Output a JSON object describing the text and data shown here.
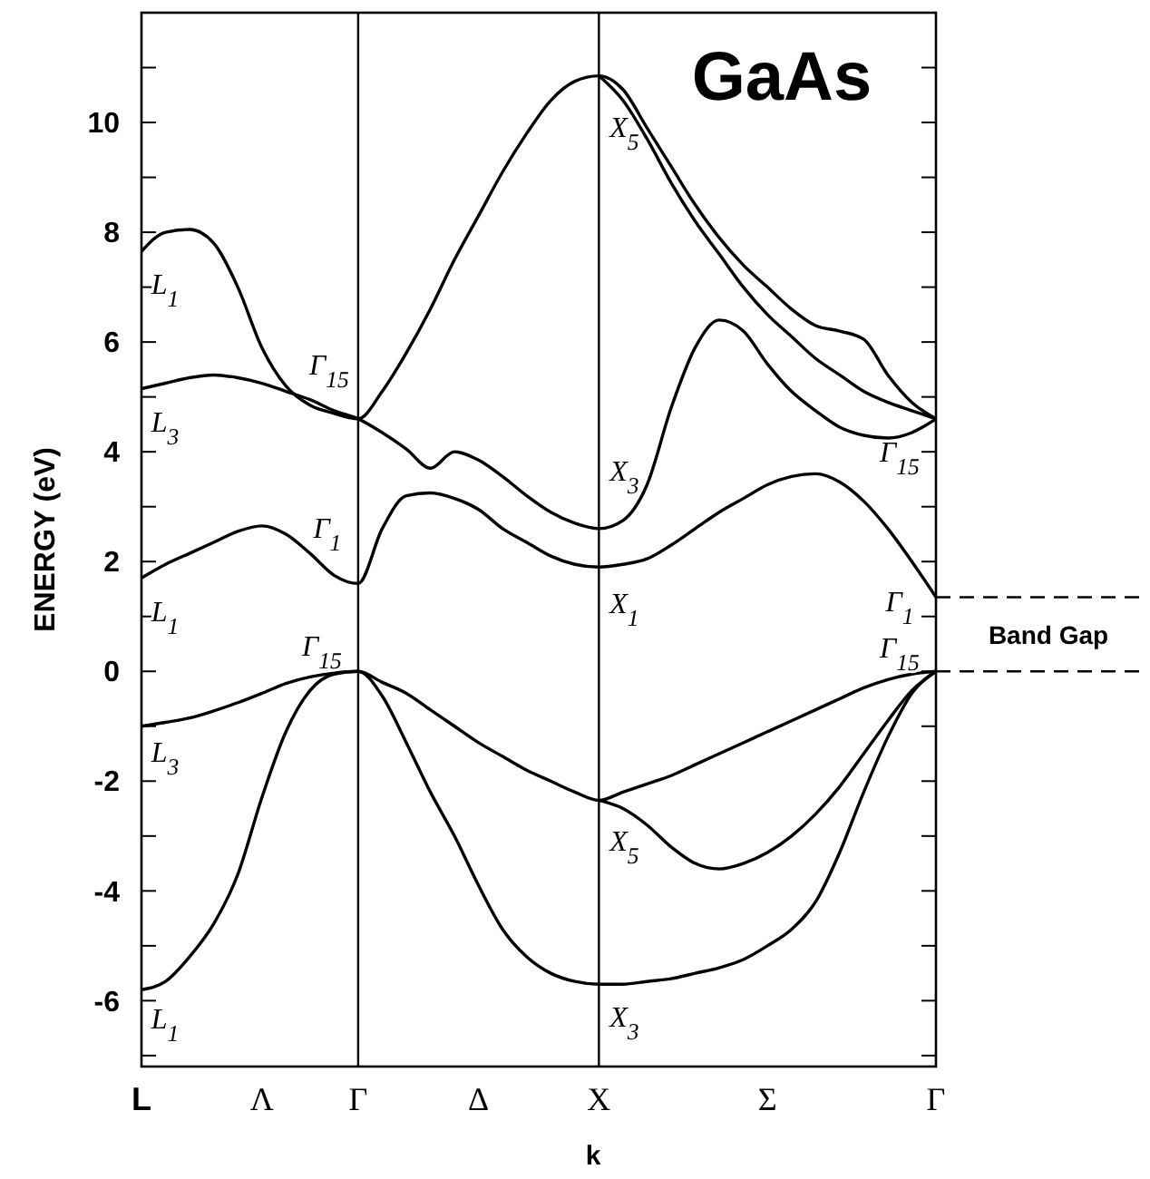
{
  "chart_data": {
    "type": "line",
    "title": "GaAs",
    "xlabel": "k",
    "ylabel": "ENERGY (eV)",
    "categories": [
      "L",
      null,
      null,
      null,
      null,
      "Λ",
      null,
      null,
      null,
      "Γ",
      null,
      null,
      null,
      null,
      "Δ",
      null,
      null,
      null,
      null,
      "X",
      null,
      null,
      null,
      null,
      null,
      null,
      "Σ",
      null,
      null,
      null,
      null,
      null,
      null,
      "Γ"
    ],
    "ylim": [
      -7.2,
      12
    ],
    "yticks": [
      {
        "value": -7,
        "label": null
      },
      -6,
      {
        "value": -5,
        "label": null
      },
      -4,
      {
        "value": -3,
        "label": null
      },
      -2,
      {
        "value": -1,
        "label": null
      },
      0,
      {
        "value": 1,
        "label": null
      },
      2,
      {
        "value": 3,
        "label": null
      },
      4,
      {
        "value": 5,
        "label": null
      },
      6,
      {
        "value": 7,
        "label": null
      },
      8,
      {
        "value": 9,
        "label": null
      },
      10,
      {
        "value": 11,
        "label": null
      }
    ],
    "ref_lines": [
      {
        "axis": "x",
        "value": "Γ"
      },
      {
        "axis": "x",
        "value": "X"
      }
    ],
    "annotations": [
      "L$_{1}$",
      "L$_{3}$",
      "Γ$_{15}$",
      "Γ$_{1}$",
      "L$_{1}$",
      "Γ$_{15}$",
      "L$_{3}$",
      "L$_{1}$",
      "X$_{5}$",
      "X$_{3}$",
      "X$_{1}$",
      "X$_{5}$",
      "X$_{3}$",
      "Γ$_{15}$",
      "Γ$_{1}$",
      "Γ$_{15}$",
      "Band Gap"
    ],
    "series": [
      {
        "color": "#000000",
        "values": [
          -1,
          -0.93,
          -0.85,
          -0.72,
          -0.57,
          -0.4,
          -0.22,
          -0.1,
          -0.03,
          0,
          -0.2,
          -0.4,
          -0.7,
          -1.0,
          -1.3,
          -1.55,
          -1.8,
          -2.0,
          -2.2,
          -2.35,
          -2.2,
          -2.05,
          -1.9,
          -1.7,
          -1.5,
          -1.3,
          -1.1,
          -0.9,
          -0.7,
          -0.5,
          -0.3,
          -0.15,
          -0.05,
          0
        ]
      },
      {
        "color": "#000000",
        "values": [
          -5.8,
          -5.65,
          -5.2,
          -4.6,
          -3.7,
          -2.3,
          -1.1,
          -0.35,
          -0.05,
          0,
          -0.45,
          -1.3,
          -2.2,
          -3.0,
          -3.9,
          -4.7,
          -5.2,
          -5.5,
          -5.65,
          -5.7,
          -5.7,
          -5.65,
          -5.6,
          -5.5,
          -5.4,
          -5.25,
          -5.0,
          -4.7,
          -4.2,
          -3.3,
          -2.2,
          -1.2,
          -0.4,
          0
        ]
      },
      {
        "color": "#000000",
        "values": [
          null,
          null,
          null,
          null,
          null,
          null,
          null,
          null,
          null,
          null,
          null,
          null,
          null,
          null,
          null,
          null,
          null,
          null,
          null,
          -2.35,
          -2.5,
          -2.8,
          -3.2,
          -3.5,
          -3.6,
          -3.5,
          -3.3,
          -3.0,
          -2.6,
          -2.1,
          -1.5,
          -0.9,
          -0.35,
          0
        ]
      },
      {
        "color": "#000000",
        "values": [
          1.7,
          1.95,
          2.15,
          2.35,
          2.55,
          2.65,
          2.5,
          2.15,
          1.75,
          1.6,
          2.6,
          3.2,
          3.25,
          3.15,
          2.95,
          2.6,
          2.35,
          2.1,
          1.95,
          1.9,
          1.95,
          2.05,
          2.3,
          2.6,
          2.9,
          3.15,
          3.4,
          3.55,
          3.6,
          3.45,
          3.1,
          2.6,
          2.0,
          1.35
        ]
      },
      {
        "color": "#000000",
        "values": [
          5.15,
          5.25,
          5.35,
          5.4,
          5.35,
          5.25,
          5.1,
          4.95,
          4.75,
          4.6,
          4.35,
          4.05,
          3.7,
          4.0,
          3.85,
          3.55,
          3.2,
          2.9,
          2.7,
          2.6,
          2.75,
          3.4,
          4.8,
          5.9,
          6.4,
          6.2,
          5.6,
          5.1,
          4.75,
          4.45,
          4.3,
          4.25,
          4.35,
          4.6
        ]
      },
      {
        "color": "#000000",
        "values": [
          7.65,
          8.0,
          8.05,
          7.8,
          7.0,
          5.9,
          5.2,
          4.85,
          4.7,
          4.6,
          5.1,
          5.8,
          6.6,
          7.5,
          8.3,
          9.1,
          9.8,
          10.4,
          10.75,
          10.85,
          10.6,
          9.9,
          9.2,
          8.5,
          7.9,
          7.4,
          7.0,
          6.6,
          6.3,
          6.2,
          6.05,
          5.4,
          4.9,
          4.6
        ]
      },
      {
        "color": "#000000",
        "values": [
          null,
          null,
          null,
          null,
          null,
          null,
          null,
          null,
          null,
          null,
          null,
          null,
          null,
          null,
          null,
          null,
          null,
          null,
          null,
          10.85,
          10.4,
          9.7,
          8.9,
          8.2,
          7.6,
          7.0,
          6.5,
          6.1,
          5.7,
          5.4,
          5.1,
          4.9,
          4.75,
          4.6
        ]
      }
    ]
  }
}
